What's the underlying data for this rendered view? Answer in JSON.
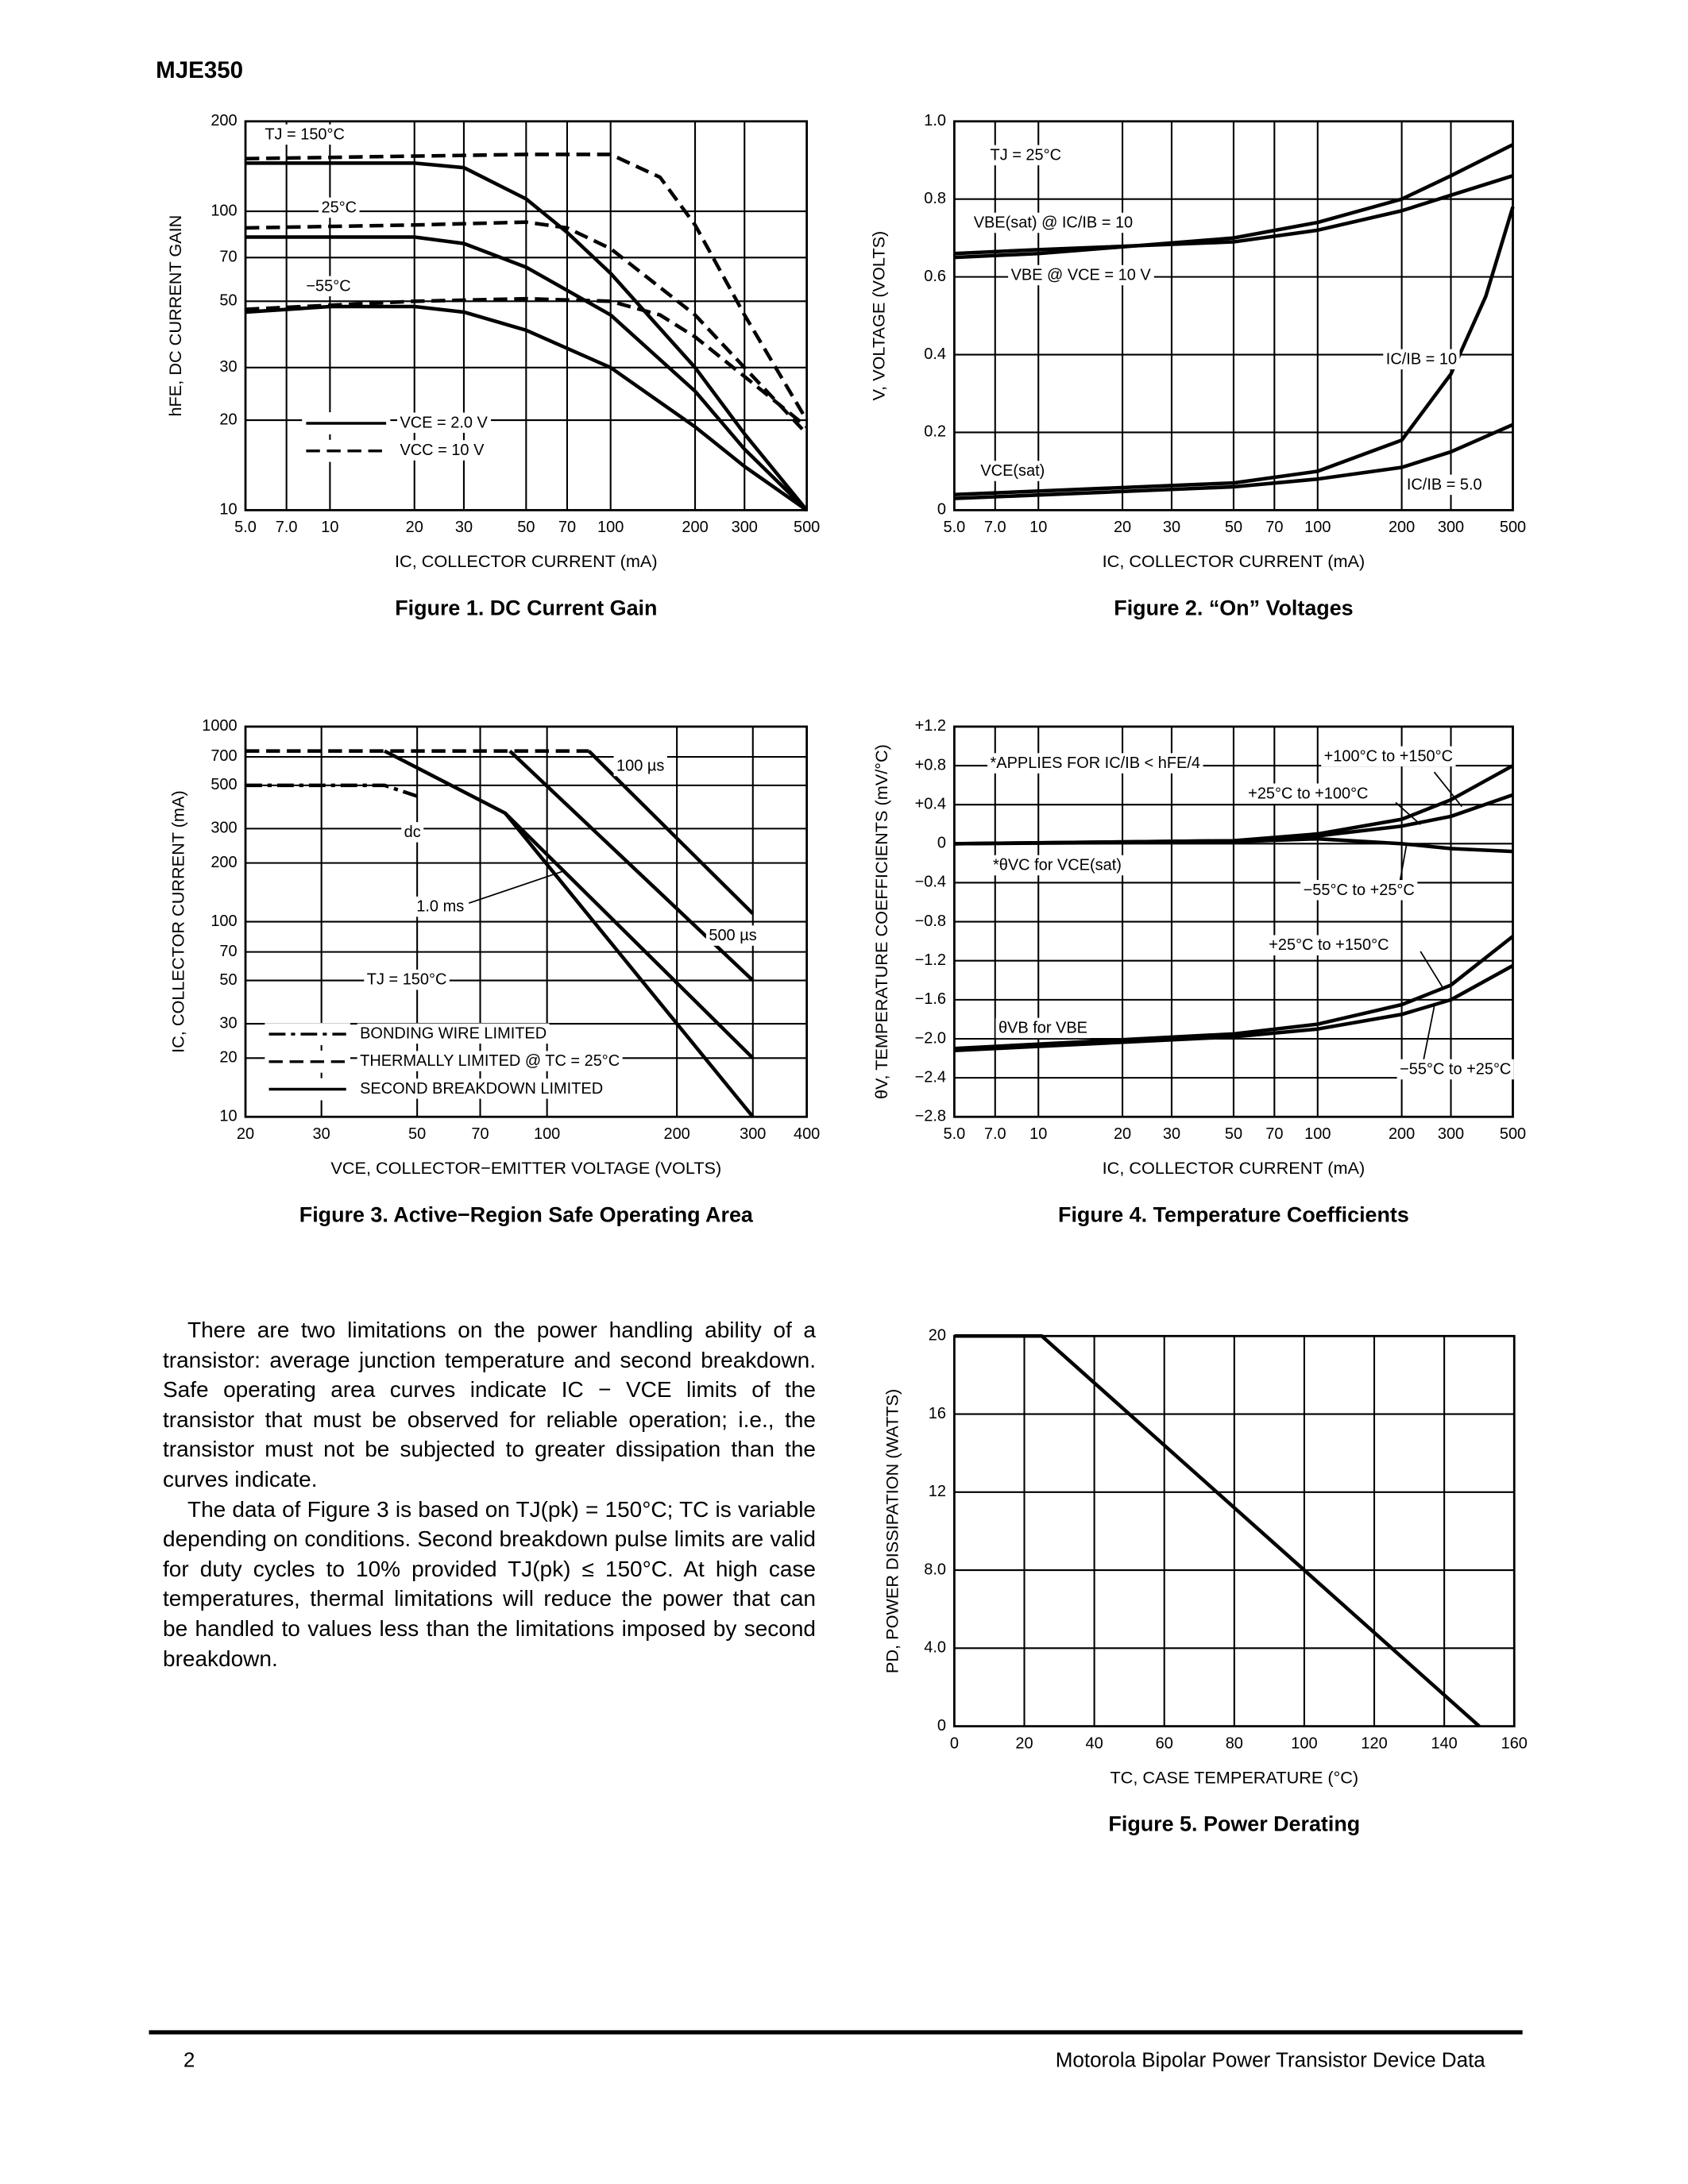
{
  "header": {
    "title": "MJE350"
  },
  "chart_data": [
    {
      "type": "line",
      "title": "Figure 1. DC Current Gain",
      "xlabel": "IC, COLLECTOR CURRENT (mA)",
      "ylabel": "hFE, DC CURRENT GAIN",
      "xscale": "log",
      "yscale": "log",
      "grid": true,
      "xlim": [
        5,
        500
      ],
      "ylim": [
        10,
        200
      ],
      "xticks": [
        {
          "value": 5,
          "label": "5.0"
        },
        {
          "value": 7,
          "label": "7.0"
        },
        10,
        20,
        30,
        50,
        70,
        100,
        200,
        300,
        500
      ],
      "yticks": [
        10,
        20,
        30,
        50,
        70,
        100,
        200
      ],
      "series": [
        {
          "style": "solid",
          "x": [
            5,
            20,
            30,
            50,
            70,
            100,
            200,
            300,
            500
          ],
          "values": [
            145,
            145,
            140,
            110,
            85,
            62,
            30,
            18,
            10
          ]
        },
        {
          "style": "dashed",
          "x": [
            5,
            50,
            100,
            150,
            200,
            300,
            500
          ],
          "values": [
            150,
            155,
            155,
            130,
            90,
            45,
            20
          ]
        },
        {
          "style": "solid",
          "x": [
            5,
            20,
            30,
            50,
            100,
            200,
            300,
            500
          ],
          "values": [
            82,
            82,
            78,
            65,
            45,
            25,
            16,
            10
          ]
        },
        {
          "style": "dashed",
          "x": [
            5,
            20,
            50,
            70,
            100,
            200,
            300,
            500
          ],
          "values": [
            88,
            90,
            92,
            88,
            75,
            45,
            30,
            18
          ]
        },
        {
          "style": "solid",
          "x": [
            5,
            10,
            20,
            30,
            50,
            100,
            200,
            300,
            500
          ],
          "values": [
            46,
            48,
            48,
            46,
            40,
            30,
            19,
            14,
            10
          ]
        },
        {
          "style": "dashed",
          "x": [
            5,
            20,
            50,
            100,
            150,
            200,
            300,
            500
          ],
          "values": [
            47,
            50,
            51,
            50,
            45,
            38,
            28,
            19
          ]
        }
      ],
      "annotations": [
        "TJ = 150°C",
        "25°C",
        "−55°C"
      ],
      "legend": [
        {
          "label": "VCE = 2.0 V",
          "style": "solid"
        },
        {
          "label": "VCC = 10 V",
          "style": "dashed"
        }
      ]
    },
    {
      "type": "line",
      "title": "Figure 2. “On” Voltages",
      "xlabel": "IC, COLLECTOR CURRENT (mA)",
      "ylabel": "V, VOLTAGE (VOLTS)",
      "xscale": "log",
      "yscale": "linear",
      "grid": true,
      "xlim": [
        5,
        500
      ],
      "ylim": [
        0,
        1
      ],
      "xticks": [
        {
          "value": 5,
          "label": "5.0"
        },
        {
          "value": 7,
          "label": "7.0"
        },
        10,
        20,
        30,
        50,
        70,
        100,
        200,
        300,
        500
      ],
      "yticks": [
        0,
        0.2,
        0.4,
        0.6,
        0.8,
        {
          "value": 1,
          "label": "1.0"
        }
      ],
      "series": [
        {
          "style": "solid",
          "x": [
            5,
            10,
            50,
            100,
            200,
            300,
            500
          ],
          "values": [
            0.65,
            0.66,
            0.7,
            0.74,
            0.8,
            0.86,
            0.94
          ]
        },
        {
          "style": "solid",
          "x": [
            5,
            10,
            50,
            100,
            200,
            300,
            500
          ],
          "values": [
            0.66,
            0.67,
            0.69,
            0.72,
            0.77,
            0.81,
            0.86
          ]
        },
        {
          "style": "solid",
          "x": [
            5,
            50,
            100,
            200,
            300,
            400,
            500
          ],
          "values": [
            0.04,
            0.07,
            0.1,
            0.18,
            0.35,
            0.55,
            0.78
          ]
        },
        {
          "style": "solid",
          "x": [
            5,
            50,
            100,
            200,
            300,
            500
          ],
          "values": [
            0.03,
            0.06,
            0.08,
            0.11,
            0.15,
            0.22
          ]
        }
      ],
      "annotations": [
        "TJ = 25°C",
        "VBE(sat) @ IC/IB = 10",
        "VBE @ VCE = 10 V",
        "IC/IB = 10",
        "VCE(sat)",
        "IC/IB = 5.0"
      ]
    },
    {
      "type": "line",
      "title": "Figure 3. Active−Region Safe Operating Area",
      "xlabel": "VCE, COLLECTOR−EMITTER VOLTAGE (VOLTS)",
      "ylabel": "IC, COLLECTOR CURRENT (mA)",
      "xscale": "log",
      "yscale": "log",
      "grid": true,
      "xlim": [
        20,
        400
      ],
      "ylim": [
        10,
        1000
      ],
      "xticks": [
        20,
        30,
        50,
        70,
        100,
        200,
        300,
        400
      ],
      "yticks": [
        10,
        20,
        30,
        50,
        70,
        100,
        200,
        300,
        500,
        700,
        1000
      ],
      "series": [
        {
          "style": "dashdot",
          "x": [
            20,
            42,
            50
          ],
          "values": [
            500,
            500,
            440
          ]
        },
        {
          "style": "dashed",
          "x": [
            20,
            125
          ],
          "values": [
            750,
            750
          ]
        },
        {
          "style": "solid",
          "x": [
            42,
            80,
            300
          ],
          "values": [
            750,
            360,
            10
          ]
        },
        {
          "style": "solid",
          "x": [
            80,
            300
          ],
          "values": [
            360,
            20
          ]
        },
        {
          "style": "solid",
          "x": [
            82,
            300
          ],
          "values": [
            750,
            50
          ]
        },
        {
          "style": "solid",
          "x": [
            125,
            300
          ],
          "values": [
            750,
            110
          ]
        }
      ],
      "annotations": [
        "100 µs",
        "dc",
        "1.0 ms",
        "500 µs",
        "TJ = 150°C"
      ],
      "legend": [
        {
          "label": "BONDING WIRE LIMITED",
          "style": "dashdot"
        },
        {
          "label": "THERMALLY LIMITED @ TC = 25°C",
          "style": "dashed"
        },
        {
          "label": "SECOND BREAKDOWN LIMITED",
          "style": "solid"
        }
      ]
    },
    {
      "type": "line",
      "title": "Figure 4. Temperature Coefficients",
      "xlabel": "IC, COLLECTOR CURRENT (mA)",
      "ylabel": "θV, TEMPERATURE COEFFICIENTS (mV/°C)",
      "xscale": "log",
      "yscale": "linear",
      "grid": true,
      "xlim": [
        5,
        500
      ],
      "ylim": [
        -2.8,
        1.2
      ],
      "xticks": [
        {
          "value": 5,
          "label": "5.0"
        },
        {
          "value": 7,
          "label": "7.0"
        },
        10,
        20,
        30,
        50,
        70,
        100,
        200,
        300,
        500
      ],
      "yticks": [
        {
          "value": -2.8,
          "label": "−2.8"
        },
        {
          "value": -2.4,
          "label": "−2.4"
        },
        {
          "value": -2,
          "label": "−2.0"
        },
        {
          "value": -1.6,
          "label": "−1.6"
        },
        {
          "value": -1.2,
          "label": "−1.2"
        },
        {
          "value": -0.8,
          "label": "−0.8"
        },
        {
          "value": -0.4,
          "label": "−0.4"
        },
        0,
        {
          "value": 0.4,
          "label": "+0.4"
        },
        {
          "value": 0.8,
          "label": "+0.8"
        },
        {
          "value": 1.2,
          "label": "+1.2"
        }
      ],
      "series": [
        {
          "style": "solid",
          "x": [
            5,
            50,
            100,
            200,
            300,
            500
          ],
          "values": [
            0,
            0.03,
            0.1,
            0.25,
            0.45,
            0.8
          ]
        },
        {
          "style": "solid",
          "x": [
            5,
            50,
            100,
            200,
            300,
            500
          ],
          "values": [
            0,
            0.03,
            0.08,
            0.18,
            0.28,
            0.5
          ]
        },
        {
          "style": "solid",
          "x": [
            5,
            50,
            100,
            200,
            300,
            500
          ],
          "values": [
            0,
            0.02,
            0.05,
            0,
            -0.05,
            -0.08
          ]
        },
        {
          "style": "solid",
          "x": [
            5,
            50,
            100,
            200,
            300,
            500
          ],
          "values": [
            -2.1,
            -1.95,
            -1.85,
            -1.65,
            -1.45,
            -0.95
          ]
        },
        {
          "style": "solid",
          "x": [
            5,
            50,
            100,
            200,
            300,
            500
          ],
          "values": [
            -2.12,
            -1.98,
            -1.9,
            -1.75,
            -1.6,
            -1.25
          ]
        }
      ],
      "annotations": [
        "*APPLIES FOR IC/IB < hFE/4",
        "+100°C to +150°C",
        "+25°C to +100°C",
        "*θVC for VCE(sat)",
        "−55°C to +25°C",
        "+25°C to +150°C",
        "θVB for VBE",
        "−55°C to +25°C"
      ]
    },
    {
      "type": "line",
      "title": "Figure 5. Power Derating",
      "xlabel": "TC, CASE TEMPERATURE (°C)",
      "ylabel": "PD, POWER DISSIPATION (WATTS)",
      "xscale": "linear",
      "yscale": "linear",
      "grid": true,
      "xlim": [
        0,
        160
      ],
      "ylim": [
        0,
        20
      ],
      "xticks": [
        0,
        20,
        40,
        60,
        80,
        100,
        120,
        140,
        160
      ],
      "yticks": [
        0,
        {
          "value": 4,
          "label": "4.0"
        },
        {
          "value": 8,
          "label": "8.0"
        },
        12,
        16,
        20
      ],
      "series": [
        {
          "style": "solid",
          "x": [
            0,
            25,
            150
          ],
          "values": [
            20,
            20,
            0
          ]
        }
      ]
    }
  ],
  "text": {
    "paragraphs": [
      "There are two limitations on the power handling ability of a transistor: average junction temperature and second breakdown. Safe operating area curves indicate IC − VCE limits of the transistor that must be observed for reliable operation; i.e., the transistor must not be subjected to greater dissipation than the curves indicate.",
      "The data of Figure 3 is based on TJ(pk) = 150°C; TC is variable depending on conditions. Second breakdown pulse limits are valid for duty cycles to 10% provided TJ(pk) ≤ 150°C. At high case temperatures, thermal limitations will reduce the power that can be handled to values less than the limitations imposed by second breakdown."
    ]
  },
  "footer": {
    "page": 2,
    "source": "Motorola Bipolar Power Transistor Device Data"
  }
}
